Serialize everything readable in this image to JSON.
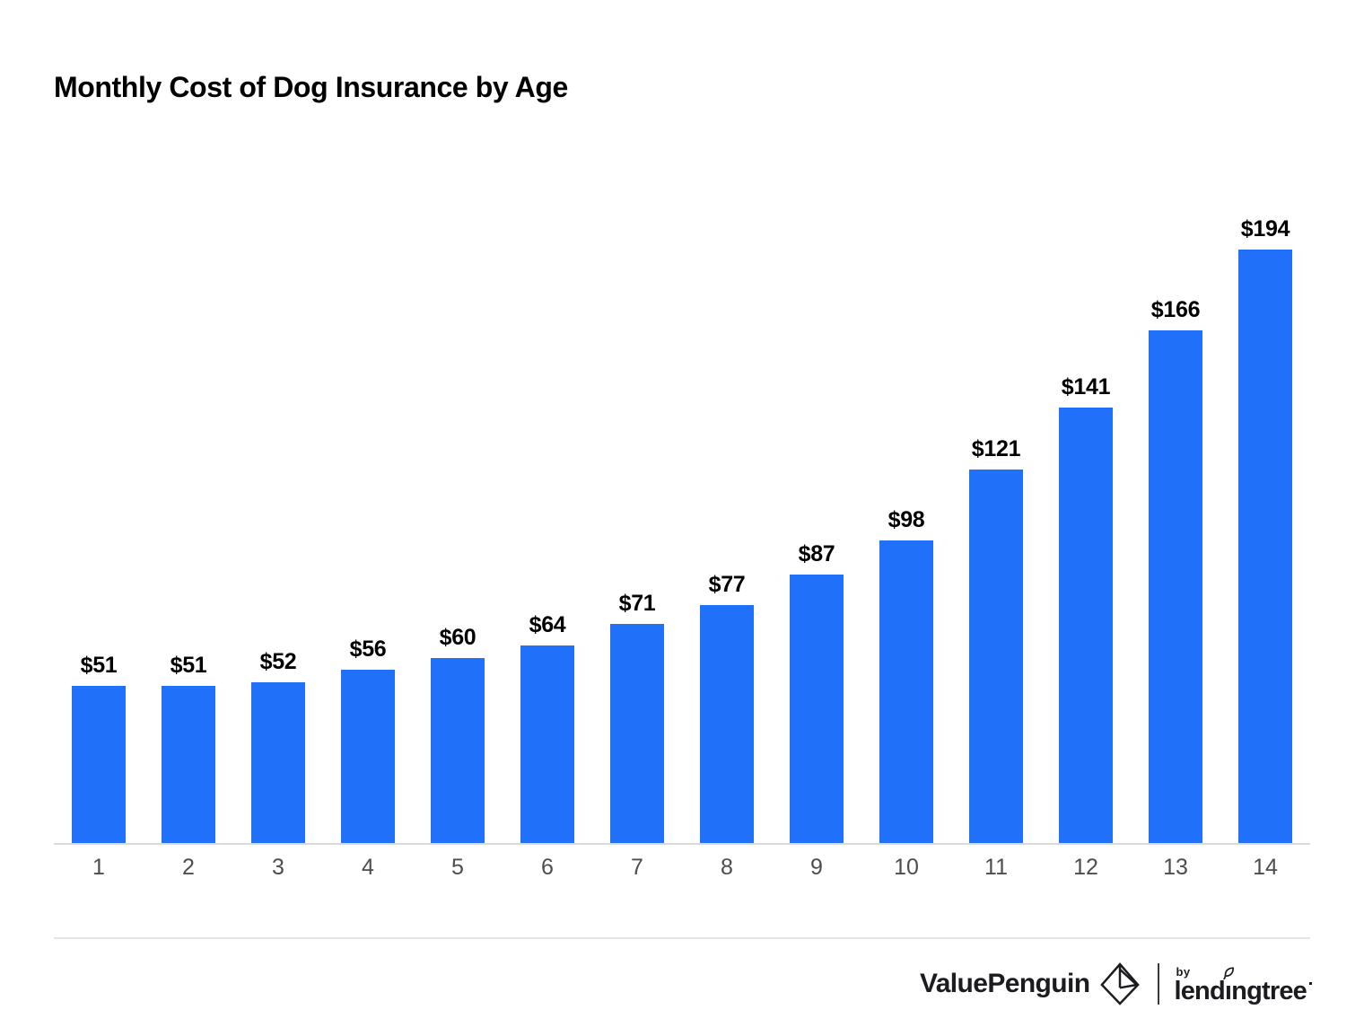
{
  "title": "Monthly Cost of Dog Insurance by Age",
  "chart_data": {
    "type": "bar",
    "title": "Monthly Cost of Dog Insurance by Age",
    "categories": [
      "1",
      "2",
      "3",
      "4",
      "5",
      "6",
      "7",
      "8",
      "9",
      "10",
      "11",
      "12",
      "13",
      "14"
    ],
    "values": [
      51,
      51,
      52,
      56,
      60,
      64,
      71,
      77,
      87,
      98,
      121,
      141,
      166,
      194
    ],
    "bar_labels": [
      "$51",
      "$51",
      "$52",
      "$56",
      "$60",
      "$64",
      "$71",
      "$77",
      "$87",
      "$98",
      "$121",
      "$141",
      "$166",
      "$194"
    ],
    "xlabel": "",
    "ylabel": "",
    "ylim": [
      0,
      203
    ],
    "grid": false,
    "legend": false,
    "y_axis_shown": false,
    "bar_color": "#2170FA"
  },
  "colors": {
    "bar": "#2170FA",
    "axis_line": "#D9D9D9",
    "tick_label": "#4D4D4D",
    "separator": "#E4E4E4",
    "title_text": "#000000",
    "brand_text": "#1B1C20"
  },
  "footer": {
    "brand_primary": "ValuePenguin",
    "brand_by": "by",
    "brand_secondary": "lendingtree",
    "icons": [
      "valuepenguin-penguin-icon",
      "logo-divider",
      "leaf-icon",
      "trademark-mark"
    ]
  }
}
